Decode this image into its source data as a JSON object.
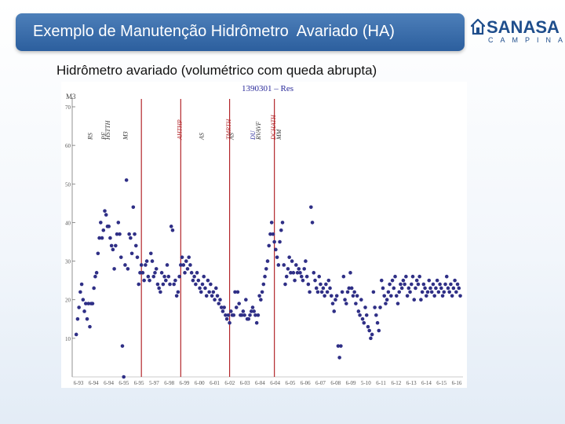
{
  "header": {
    "title": "Exemplo de Manutenção Hidrômetro  Avariado (HA)"
  },
  "logo": {
    "word": "SANASA",
    "sub": "CAMPINAS"
  },
  "subtitle": "Hidrômetro avariado (volumétrico com queda abrupta)",
  "colors": {
    "header_bg": "#2c5f9e",
    "points": "#2f2f86",
    "event_lines": "#b3262a",
    "events_red": "#b3262a",
    "events_blue": "#2a2a9a"
  },
  "chart_data": {
    "type": "scatter",
    "title": "1390301 – Res",
    "ylabel": "M3",
    "ylim": [
      0,
      70
    ],
    "yticks": [
      10,
      20,
      30,
      40,
      50,
      60,
      70
    ],
    "xticks": [
      "6-93",
      "6-94",
      "6-94",
      "6-95",
      "6-95",
      "5-97",
      "6-98",
      "6-99",
      "6-00",
      "6-01",
      "6-02",
      "6-03",
      "6-04",
      "6-04",
      "6-05",
      "6-06",
      "6-07",
      "6-08",
      "6-09",
      "5-10",
      "6-11",
      "6-12",
      "6-13",
      "6-14",
      "6-15",
      "6-16"
    ],
    "event_lines_x": [
      49,
      78,
      114,
      147
    ],
    "events": [
      {
        "label": "RS",
        "x": 11,
        "color": "dark"
      },
      {
        "label": "PF",
        "x": 21,
        "color": "dark"
      },
      {
        "label": "HSTTH",
        "x": 24,
        "color": "dark"
      },
      {
        "label": "M3",
        "x": 37,
        "color": "dark"
      },
      {
        "label": "AHTHP",
        "x": 77,
        "color": "red"
      },
      {
        "label": "AS",
        "x": 93,
        "color": "dark"
      },
      {
        "label": "TMRTH",
        "x": 113,
        "color": "red"
      },
      {
        "label": "AS",
        "x": 115,
        "color": "dark"
      },
      {
        "label": "DU",
        "x": 131,
        "color": "blue"
      },
      {
        "label": "RVAVF",
        "x": 135,
        "color": "dark"
      },
      {
        "label": "DCHATH",
        "x": 146,
        "color": "red"
      },
      {
        "label": "MM",
        "x": 150,
        "color": "dark"
      }
    ],
    "points": [
      [
        1,
        11
      ],
      [
        2,
        15
      ],
      [
        3,
        18
      ],
      [
        4,
        22
      ],
      [
        5,
        24
      ],
      [
        6,
        20
      ],
      [
        7,
        17
      ],
      [
        8,
        19
      ],
      [
        9,
        15
      ],
      [
        10,
        19
      ],
      [
        11,
        13
      ],
      [
        12,
        19
      ],
      [
        13,
        19
      ],
      [
        14,
        23
      ],
      [
        15,
        26
      ],
      [
        16,
        27
      ],
      [
        17,
        32
      ],
      [
        18,
        36
      ],
      [
        19,
        40
      ],
      [
        20,
        36
      ],
      [
        21,
        38
      ],
      [
        22,
        43
      ],
      [
        23,
        42
      ],
      [
        24,
        39
      ],
      [
        25,
        39
      ],
      [
        26,
        36
      ],
      [
        27,
        34
      ],
      [
        28,
        33
      ],
      [
        29,
        28
      ],
      [
        30,
        34
      ],
      [
        31,
        37
      ],
      [
        32,
        40
      ],
      [
        33,
        37
      ],
      [
        34,
        31
      ],
      [
        35,
        8
      ],
      [
        36,
        0
      ],
      [
        37,
        29
      ],
      [
        38,
        51
      ],
      [
        39,
        28
      ],
      [
        40,
        37
      ],
      [
        41,
        36
      ],
      [
        42,
        32
      ],
      [
        43,
        44
      ],
      [
        44,
        37
      ],
      [
        45,
        34
      ],
      [
        46,
        31
      ],
      [
        47,
        24
      ],
      [
        48,
        27
      ],
      [
        49,
        29
      ],
      [
        50,
        27
      ],
      [
        51,
        25
      ],
      [
        52,
        29
      ],
      [
        53,
        30
      ],
      [
        54,
        26
      ],
      [
        55,
        25
      ],
      [
        56,
        32
      ],
      [
        57,
        30
      ],
      [
        58,
        26
      ],
      [
        59,
        27
      ],
      [
        60,
        28
      ],
      [
        61,
        24
      ],
      [
        62,
        23
      ],
      [
        63,
        22
      ],
      [
        64,
        27
      ],
      [
        65,
        24
      ],
      [
        66,
        26
      ],
      [
        67,
        25
      ],
      [
        68,
        29
      ],
      [
        69,
        26
      ],
      [
        70,
        24
      ],
      [
        71,
        39
      ],
      [
        72,
        38
      ],
      [
        73,
        24
      ],
      [
        74,
        25
      ],
      [
        75,
        21
      ],
      [
        76,
        22
      ],
      [
        77,
        26
      ],
      [
        78,
        29
      ],
      [
        79,
        31
      ],
      [
        80,
        29
      ],
      [
        81,
        27
      ],
      [
        82,
        30
      ],
      [
        83,
        28
      ],
      [
        84,
        31
      ],
      [
        85,
        29
      ],
      [
        86,
        27
      ],
      [
        87,
        25
      ],
      [
        88,
        26
      ],
      [
        89,
        24
      ],
      [
        90,
        27
      ],
      [
        91,
        25
      ],
      [
        92,
        23
      ],
      [
        93,
        22
      ],
      [
        94,
        24
      ],
      [
        95,
        26
      ],
      [
        96,
        23
      ],
      [
        97,
        21
      ],
      [
        98,
        25
      ],
      [
        99,
        22
      ],
      [
        100,
        24
      ],
      [
        101,
        21
      ],
      [
        102,
        22
      ],
      [
        103,
        20
      ],
      [
        104,
        23
      ],
      [
        105,
        21
      ],
      [
        106,
        19
      ],
      [
        107,
        20
      ],
      [
        108,
        18
      ],
      [
        109,
        17
      ],
      [
        110,
        18
      ],
      [
        111,
        16
      ],
      [
        112,
        15
      ],
      [
        113,
        16
      ],
      [
        114,
        14
      ],
      [
        115,
        17
      ],
      [
        116,
        16
      ],
      [
        117,
        16
      ],
      [
        118,
        22
      ],
      [
        119,
        18
      ],
      [
        120,
        22
      ],
      [
        121,
        19
      ],
      [
        122,
        16
      ],
      [
        123,
        16
      ],
      [
        124,
        17
      ],
      [
        125,
        16
      ],
      [
        126,
        20
      ],
      [
        127,
        15
      ],
      [
        128,
        15
      ],
      [
        129,
        16
      ],
      [
        130,
        17
      ],
      [
        131,
        18
      ],
      [
        132,
        17
      ],
      [
        133,
        16
      ],
      [
        134,
        14
      ],
      [
        135,
        16
      ],
      [
        136,
        21
      ],
      [
        137,
        20
      ],
      [
        138,
        22
      ],
      [
        139,
        24
      ],
      [
        140,
        26
      ],
      [
        141,
        28
      ],
      [
        142,
        30
      ],
      [
        143,
        34
      ],
      [
        144,
        37
      ],
      [
        145,
        40
      ],
      [
        146,
        37
      ],
      [
        147,
        35
      ],
      [
        148,
        33
      ],
      [
        149,
        31
      ],
      [
        150,
        29
      ],
      [
        151,
        35
      ],
      [
        152,
        38
      ],
      [
        153,
        40
      ],
      [
        154,
        29
      ],
      [
        155,
        24
      ],
      [
        156,
        26
      ],
      [
        157,
        28
      ],
      [
        158,
        31
      ],
      [
        159,
        27
      ],
      [
        160,
        30
      ],
      [
        161,
        27
      ],
      [
        162,
        25
      ],
      [
        163,
        29
      ],
      [
        164,
        27
      ],
      [
        165,
        28
      ],
      [
        166,
        27
      ],
      [
        167,
        26
      ],
      [
        168,
        25
      ],
      [
        169,
        28
      ],
      [
        170,
        30
      ],
      [
        171,
        26
      ],
      [
        172,
        24
      ],
      [
        173,
        22
      ],
      [
        174,
        44
      ],
      [
        175,
        40
      ],
      [
        176,
        27
      ],
      [
        177,
        25
      ],
      [
        178,
        23
      ],
      [
        179,
        22
      ],
      [
        180,
        26
      ],
      [
        181,
        24
      ],
      [
        182,
        22
      ],
      [
        183,
        23
      ],
      [
        184,
        21
      ],
      [
        185,
        24
      ],
      [
        186,
        22
      ],
      [
        187,
        25
      ],
      [
        188,
        23
      ],
      [
        189,
        21
      ],
      [
        190,
        19
      ],
      [
        191,
        17
      ],
      [
        192,
        20
      ],
      [
        193,
        21
      ],
      [
        194,
        8
      ],
      [
        195,
        5
      ],
      [
        196,
        8
      ],
      [
        197,
        22
      ],
      [
        198,
        26
      ],
      [
        199,
        20
      ],
      [
        200,
        19
      ],
      [
        201,
        22
      ],
      [
        202,
        23
      ],
      [
        203,
        27
      ],
      [
        204,
        23
      ],
      [
        205,
        21
      ],
      [
        206,
        22
      ],
      [
        207,
        19
      ],
      [
        208,
        21
      ],
      [
        209,
        17
      ],
      [
        210,
        16
      ],
      [
        211,
        20
      ],
      [
        212,
        15
      ],
      [
        213,
        14
      ],
      [
        214,
        18
      ],
      [
        215,
        16
      ],
      [
        216,
        13
      ],
      [
        217,
        12
      ],
      [
        218,
        10
      ],
      [
        219,
        11
      ],
      [
        220,
        22
      ],
      [
        221,
        18
      ],
      [
        222,
        16
      ],
      [
        223,
        14
      ],
      [
        224,
        12
      ],
      [
        225,
        18
      ],
      [
        226,
        25
      ],
      [
        227,
        23
      ],
      [
        228,
        21
      ],
      [
        229,
        19
      ],
      [
        230,
        20
      ],
      [
        231,
        22
      ],
      [
        232,
        24
      ],
      [
        233,
        21
      ],
      [
        234,
        25
      ],
      [
        235,
        23
      ],
      [
        236,
        26
      ],
      [
        237,
        21
      ],
      [
        238,
        19
      ],
      [
        239,
        22
      ],
      [
        240,
        24
      ],
      [
        241,
        23
      ],
      [
        242,
        25
      ],
      [
        243,
        24
      ],
      [
        244,
        26
      ],
      [
        245,
        21
      ],
      [
        246,
        23
      ],
      [
        247,
        22
      ],
      [
        248,
        24
      ],
      [
        249,
        26
      ],
      [
        250,
        20
      ],
      [
        251,
        23
      ],
      [
        252,
        25
      ],
      [
        253,
        24
      ],
      [
        254,
        26
      ],
      [
        255,
        20
      ],
      [
        256,
        22
      ],
      [
        257,
        24
      ],
      [
        258,
        23
      ],
      [
        259,
        21
      ],
      [
        260,
        22
      ],
      [
        261,
        25
      ],
      [
        262,
        23
      ],
      [
        263,
        22
      ],
      [
        264,
        24
      ],
      [
        265,
        21
      ],
      [
        266,
        23
      ],
      [
        267,
        25
      ],
      [
        268,
        22
      ],
      [
        269,
        24
      ],
      [
        270,
        23
      ],
      [
        271,
        21
      ],
      [
        272,
        22
      ],
      [
        273,
        24
      ],
      [
        274,
        26
      ],
      [
        275,
        23
      ],
      [
        276,
        22
      ],
      [
        277,
        24
      ],
      [
        278,
        21
      ],
      [
        279,
        23
      ],
      [
        280,
        25
      ],
      [
        281,
        22
      ],
      [
        282,
        24
      ],
      [
        283,
        23
      ],
      [
        284,
        21
      ]
    ]
  }
}
